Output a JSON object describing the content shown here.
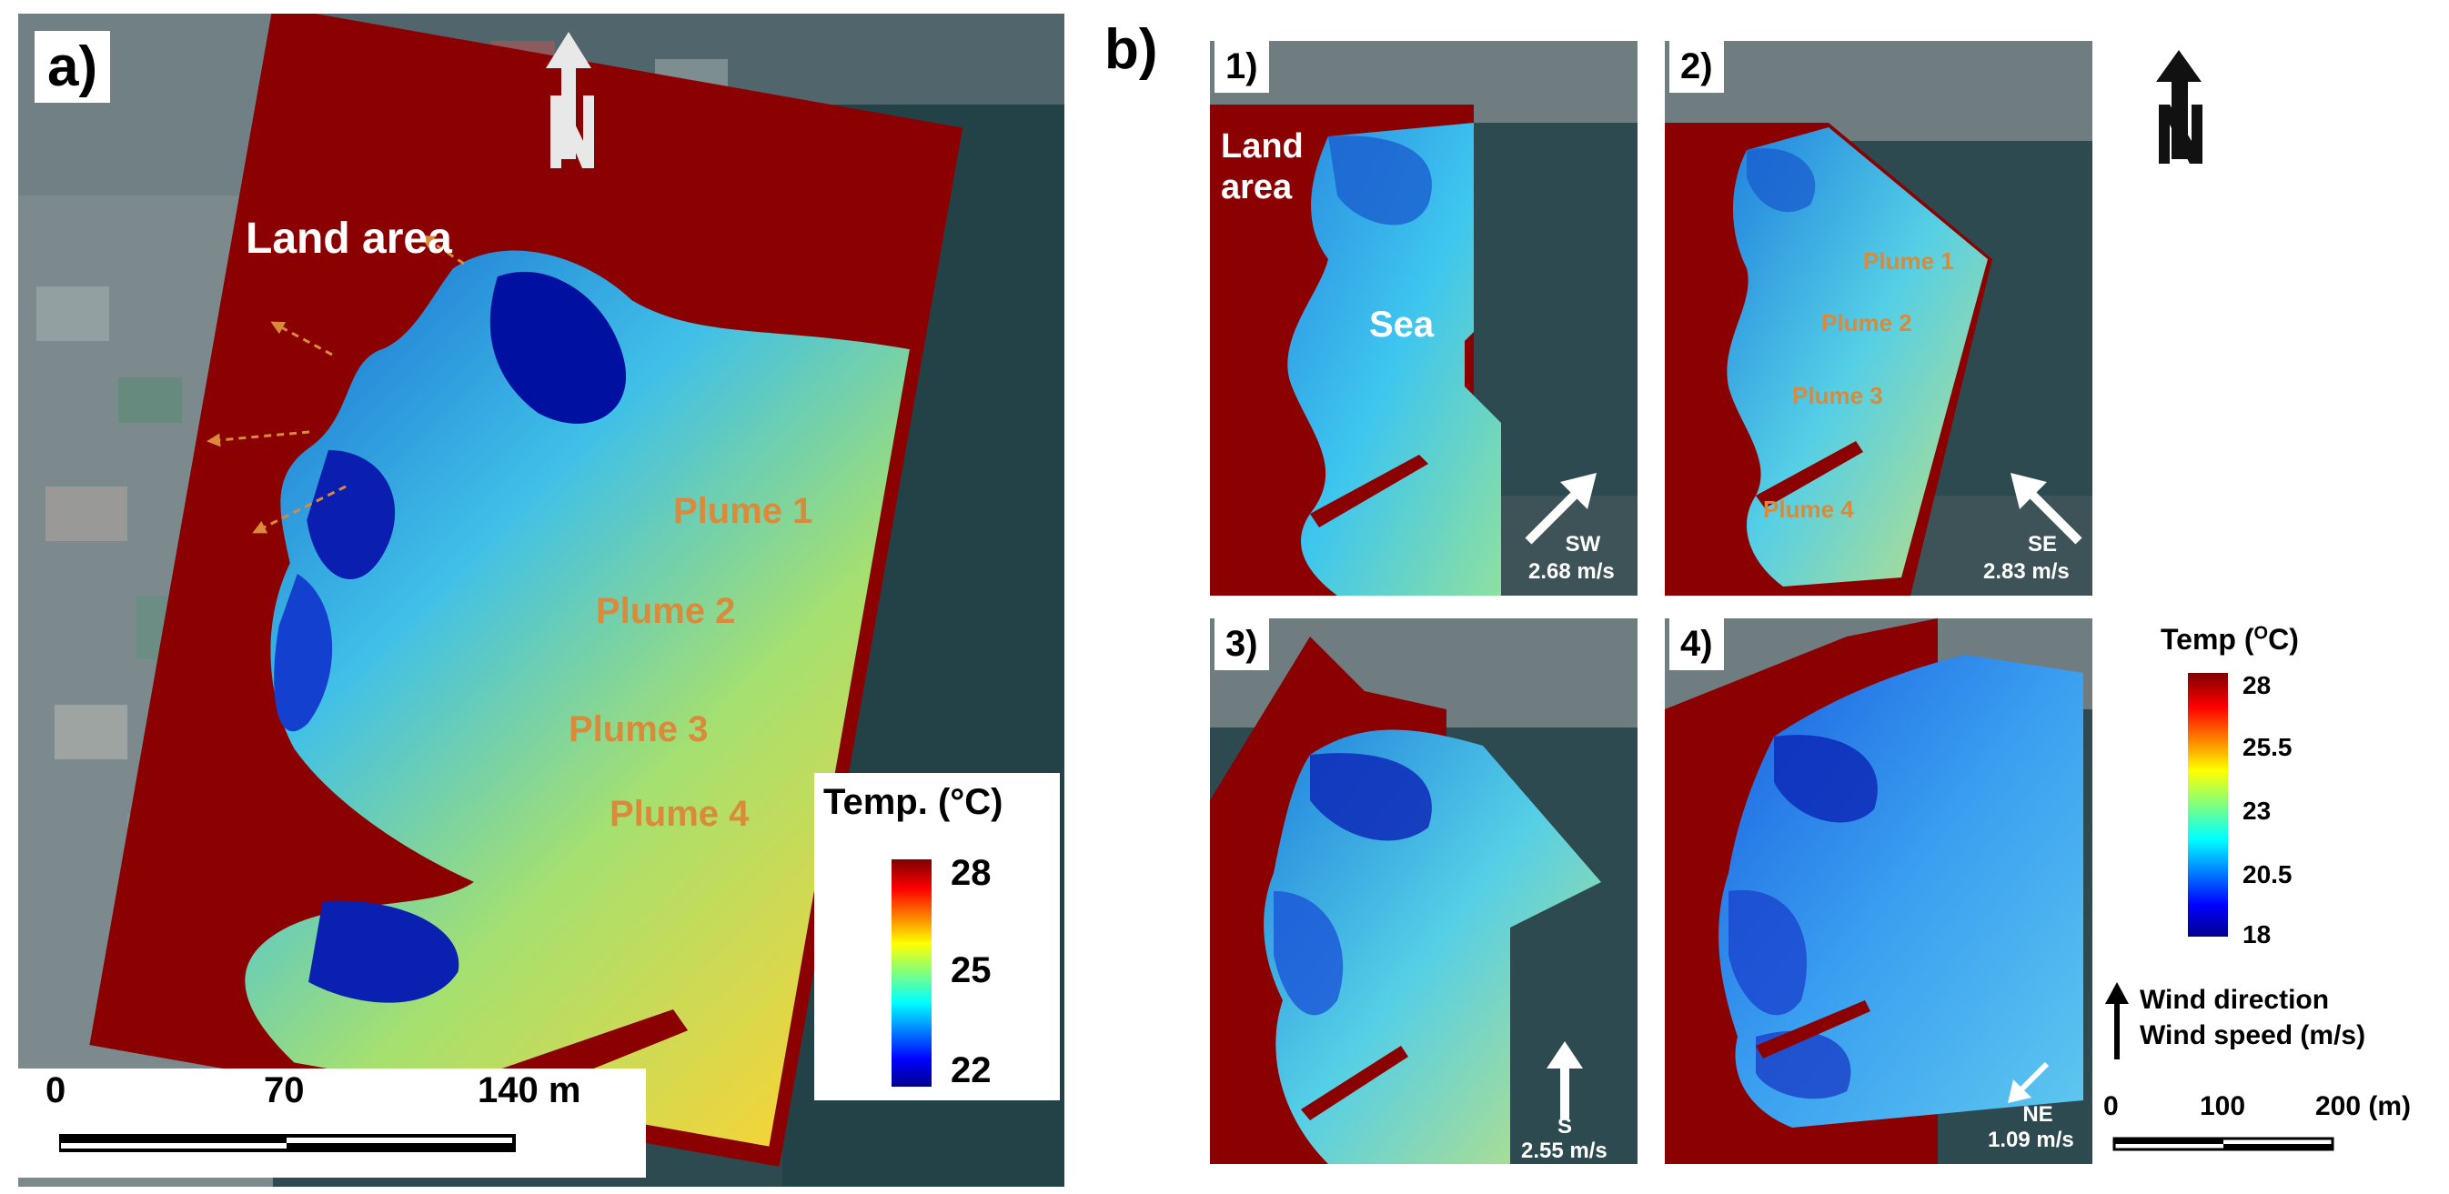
{
  "panel_a": {
    "label": "a)",
    "land_label": "Land area",
    "plumes": [
      "Plume 1",
      "Plume 2",
      "Plume 3",
      "Plume 4"
    ],
    "legend": {
      "title": "Temp. (°C)",
      "ticks": [
        "28",
        "25",
        "22"
      ]
    },
    "scale": {
      "ticks": [
        "0",
        "70",
        "140 m"
      ]
    }
  },
  "panel_b": {
    "label": "b)",
    "subpanels": [
      {
        "label": "1)",
        "land_label_1": "Land",
        "land_label_2": "area",
        "sea_label": "Sea",
        "wind_dir": "SW",
        "wind_speed": "2.68 m/s"
      },
      {
        "label": "2)",
        "plumes": [
          "Plume 1",
          "Plume 2",
          "Plume 3",
          "Plume 4"
        ],
        "wind_dir": "SE",
        "wind_speed": "2.83 m/s"
      },
      {
        "label": "3)",
        "wind_dir": "S",
        "wind_speed": "2.55 m/s"
      },
      {
        "label": "4)",
        "wind_dir": "NE",
        "wind_speed": "1.09 m/s"
      }
    ],
    "legend": {
      "title": "Temp (oC)",
      "title_base": "Temp (",
      "title_sup": "O",
      "title_end": "C)",
      "ticks": [
        "28",
        "25.5",
        "23",
        "20.5",
        "18"
      ]
    },
    "wind_legend": {
      "line1": "Wind direction",
      "line2": "Wind speed (m/s)"
    },
    "scale": {
      "ticks": [
        "0",
        "100",
        "200 (m)"
      ]
    }
  },
  "colors": {
    "land": "#8b0000",
    "sea_dark": "#1f3d43",
    "plume_label": "#d98a3a"
  }
}
